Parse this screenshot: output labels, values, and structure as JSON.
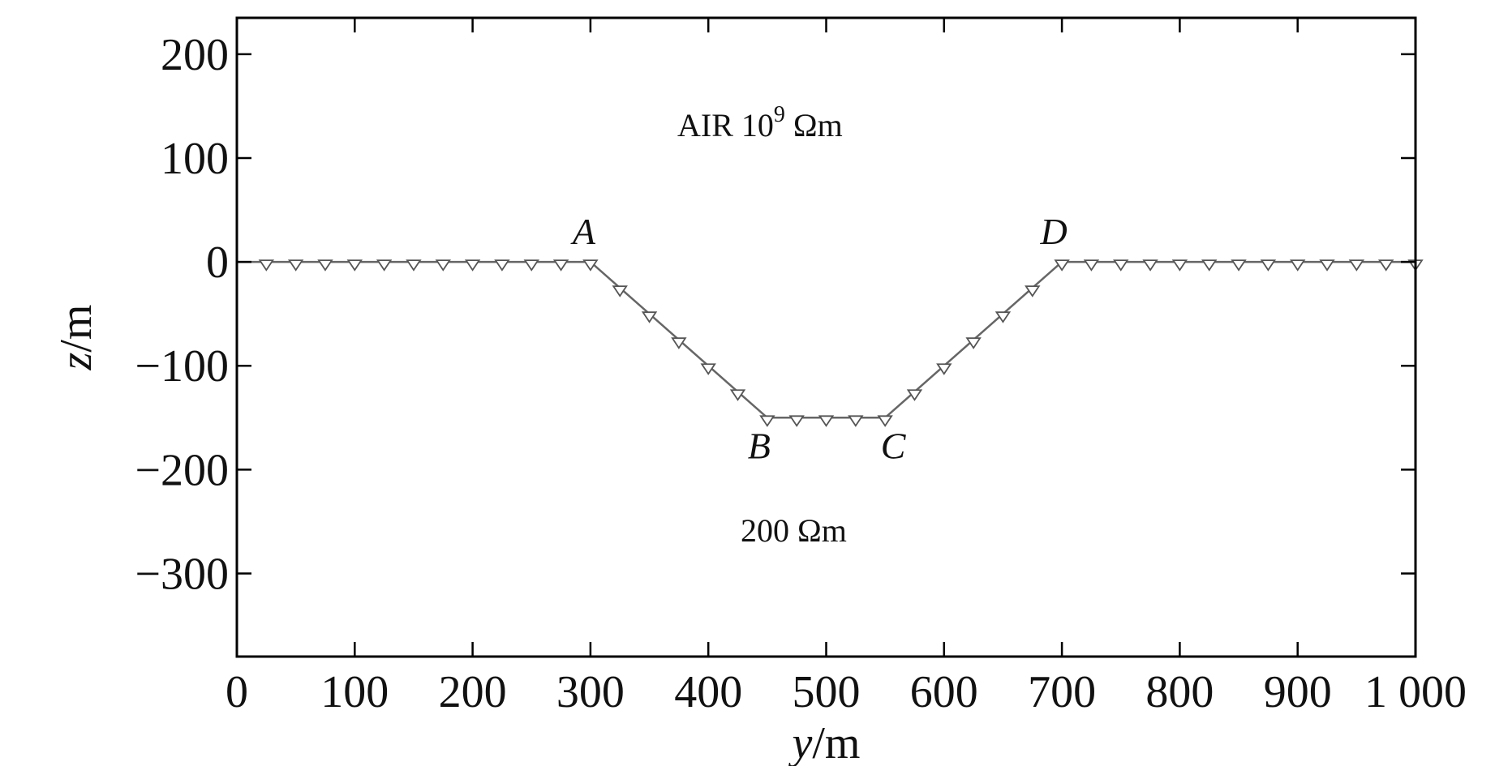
{
  "chart_data": {
    "type": "line",
    "title": "",
    "xlabel": {
      "var": "y",
      "unit": "/m"
    },
    "ylabel": {
      "var": "z",
      "unit": "/m"
    },
    "xlim": [
      0,
      1000
    ],
    "ylim": [
      -380,
      235
    ],
    "xticks": [
      0,
      100,
      200,
      300,
      400,
      500,
      600,
      700,
      800,
      900,
      1000
    ],
    "xtick_labels": [
      "0",
      "100",
      "200",
      "300",
      "400",
      "500",
      "600",
      "700",
      "800",
      "900",
      "1 000"
    ],
    "yticks": [
      200,
      100,
      0,
      -100,
      -200,
      -300
    ],
    "ytick_labels": [
      "200",
      "100",
      "0",
      "−100",
      "−200",
      "−300"
    ],
    "grid": false,
    "series": [
      {
        "values": [
          [
            0,
            0
          ],
          [
            300,
            0
          ],
          [
            450,
            -150
          ],
          [
            550,
            -150
          ],
          [
            700,
            0
          ],
          [
            1000,
            0
          ]
        ]
      }
    ],
    "markers": [
      [
        25,
        0
      ],
      [
        50,
        0
      ],
      [
        75,
        0
      ],
      [
        100,
        0
      ],
      [
        125,
        0
      ],
      [
        150,
        0
      ],
      [
        175,
        0
      ],
      [
        200,
        0
      ],
      [
        225,
        0
      ],
      [
        250,
        0
      ],
      [
        275,
        0
      ],
      [
        300,
        0
      ],
      [
        325,
        -25
      ],
      [
        350,
        -50
      ],
      [
        375,
        -75
      ],
      [
        400,
        -100
      ],
      [
        425,
        -125
      ],
      [
        450,
        -150
      ],
      [
        475,
        -150
      ],
      [
        500,
        -150
      ],
      [
        525,
        -150
      ],
      [
        550,
        -150
      ],
      [
        575,
        -125
      ],
      [
        600,
        -100
      ],
      [
        625,
        -75
      ],
      [
        650,
        -50
      ],
      [
        675,
        -25
      ],
      [
        700,
        0
      ],
      [
        725,
        0
      ],
      [
        750,
        0
      ],
      [
        775,
        0
      ],
      [
        800,
        0
      ],
      [
        825,
        0
      ],
      [
        850,
        0
      ],
      [
        875,
        0
      ],
      [
        900,
        0
      ],
      [
        925,
        0
      ],
      [
        950,
        0
      ],
      [
        975,
        0
      ],
      [
        1000,
        0
      ]
    ],
    "point_labels": [
      {
        "text": "A",
        "x": 300,
        "y": 0
      },
      {
        "text": "B",
        "x": 450,
        "y": -150
      },
      {
        "text": "C",
        "x": 550,
        "y": -150
      },
      {
        "text": "D",
        "x": 700,
        "y": 0
      }
    ],
    "annotations": [
      {
        "id": "air",
        "base": "AIR 10",
        "sup": "9",
        "unit": "Ωm"
      },
      {
        "id": "ground",
        "base": "200 ",
        "sup": "",
        "unit": "Ωm"
      }
    ],
    "colors": {
      "line": "#666666",
      "marker": "#555555",
      "axis": "#000000"
    }
  }
}
